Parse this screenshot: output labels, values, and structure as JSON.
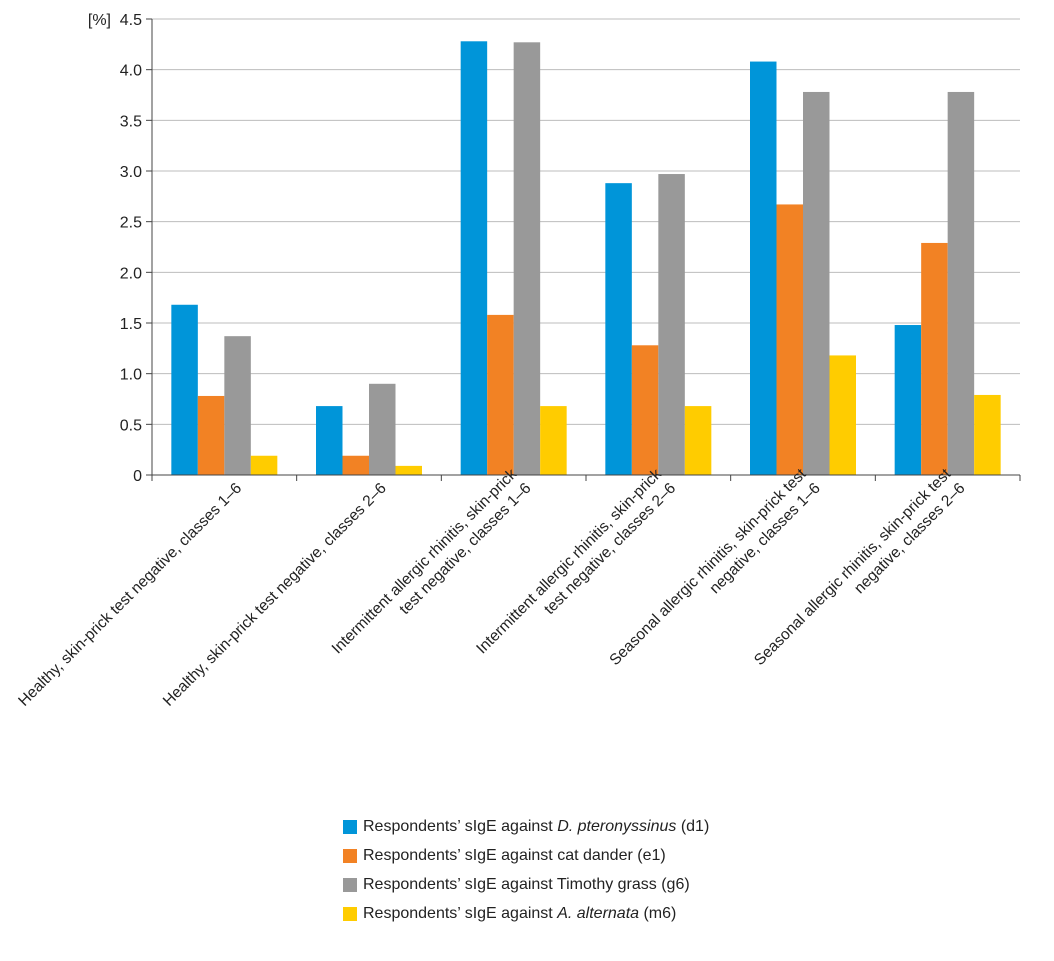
{
  "chart_data": {
    "type": "bar",
    "ylabel": "[%]",
    "ylim": [
      0,
      4.5
    ],
    "yticks": [
      "0",
      "0.5",
      "1.0",
      "1.5",
      "2.0",
      "2.5",
      "3.0",
      "3.5",
      "4.0",
      "4.5"
    ],
    "grid": true,
    "legend_position": "bottom",
    "categories": [
      [
        "Healthy, skin-prick test negative, classes 1–6"
      ],
      [
        "Healthy, skin-prick test negative, classes 2–6"
      ],
      [
        "Intermittent allergic rhinitis, skin-prick",
        "test negative, classes 1–6"
      ],
      [
        "Intermittent allergic rhinitis, skin-prick",
        "test negative, classes 2–6"
      ],
      [
        "Seasonal allergic rhinitis, skin-prick test",
        "negative, classes 1–6"
      ],
      [
        "Seasonal allergic rhinitis, skin-prick test",
        "negative, classes 2–6"
      ]
    ],
    "series": [
      {
        "name": "Respondents’ sIgE against D. pteronyssinus (d1)",
        "legend_parts": [
          {
            "t": "Respondents’ sIgE against "
          },
          {
            "t": "D. pteronyssinus",
            "i": true
          },
          {
            "t": " (d1)"
          }
        ],
        "color": "#0095d9",
        "values": [
          1.68,
          0.68,
          4.28,
          2.88,
          4.08,
          1.48
        ]
      },
      {
        "name": "Respondents’ sIgE against cat dander (e1)",
        "legend_parts": [
          {
            "t": "Respondents’ sIgE against cat dander (e1)"
          }
        ],
        "color": "#f28224",
        "values": [
          0.78,
          0.19,
          1.58,
          1.28,
          2.67,
          2.29
        ]
      },
      {
        "name": "Respondents’ sIgE against Timothy grass (g6)",
        "legend_parts": [
          {
            "t": "Respondents’ sIgE against Timothy grass (g6)"
          }
        ],
        "color": "#999999",
        "values": [
          1.37,
          0.9,
          4.27,
          2.97,
          3.78,
          3.78
        ]
      },
      {
        "name": "Respondents’ sIgE against A. alternata (m6)",
        "legend_parts": [
          {
            "t": "Respondents’ sIgE against "
          },
          {
            "t": "A. alternata",
            "i": true
          },
          {
            "t": " (m6)"
          }
        ],
        "color": "#ffcc00",
        "values": [
          0.19,
          0.09,
          0.68,
          0.68,
          1.18,
          0.79
        ]
      }
    ]
  }
}
